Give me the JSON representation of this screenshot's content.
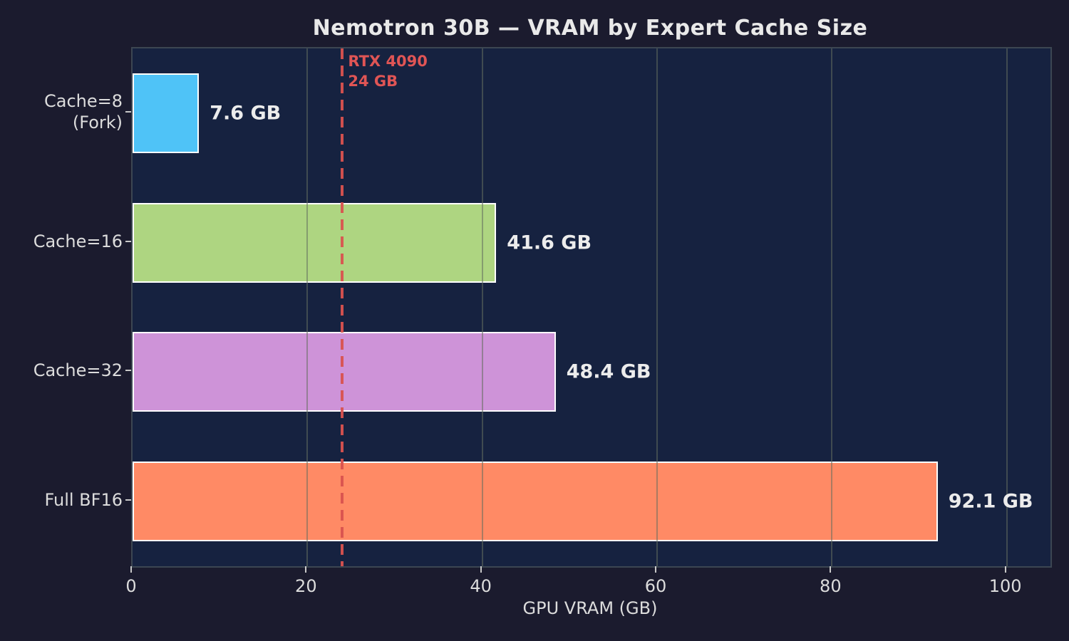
{
  "title": "Nemotron 30B — VRAM by Expert Cache Size",
  "chart_data": {
    "type": "bar",
    "orientation": "horizontal",
    "title": "Nemotron 30B — VRAM by Expert Cache Size",
    "xlabel": "GPU VRAM (GB)",
    "ylabel": "",
    "categories": [
      "Cache=8 (Fork)",
      "Cache=16",
      "Cache=32",
      "Full BF16"
    ],
    "category_display_lines": [
      [
        "Cache=8",
        "(Fork)"
      ],
      [
        "Cache=16"
      ],
      [
        "Cache=32"
      ],
      [
        "Full BF16"
      ]
    ],
    "values": [
      7.6,
      41.6,
      48.4,
      92.1
    ],
    "value_labels": [
      "7.6 GB",
      "41.6 GB",
      "48.4 GB",
      "92.1 GB"
    ],
    "bar_colors": [
      "#4fc3f7",
      "#aed581",
      "#ce93d8",
      "#ff8a65"
    ],
    "bar_edge_color": "#ffffff",
    "xlim": [
      0,
      105
    ],
    "xticks": [
      0,
      20,
      40,
      60,
      80,
      100
    ],
    "grid": true,
    "grid_on_top_of_bars": true,
    "legend": null,
    "reference_line": {
      "x": 24,
      "label_line1": "RTX 4090",
      "label_line2": "24 GB",
      "color": "#d9534f"
    }
  },
  "colors": {
    "figure_background": "#1b1b2e",
    "plot_background": "#162240",
    "title_text": "#e9e9e9",
    "tick_text": "#dcdcdc",
    "value_text": "#ececec",
    "annotation_text": "#e05555",
    "gridline": "#646e5f"
  }
}
